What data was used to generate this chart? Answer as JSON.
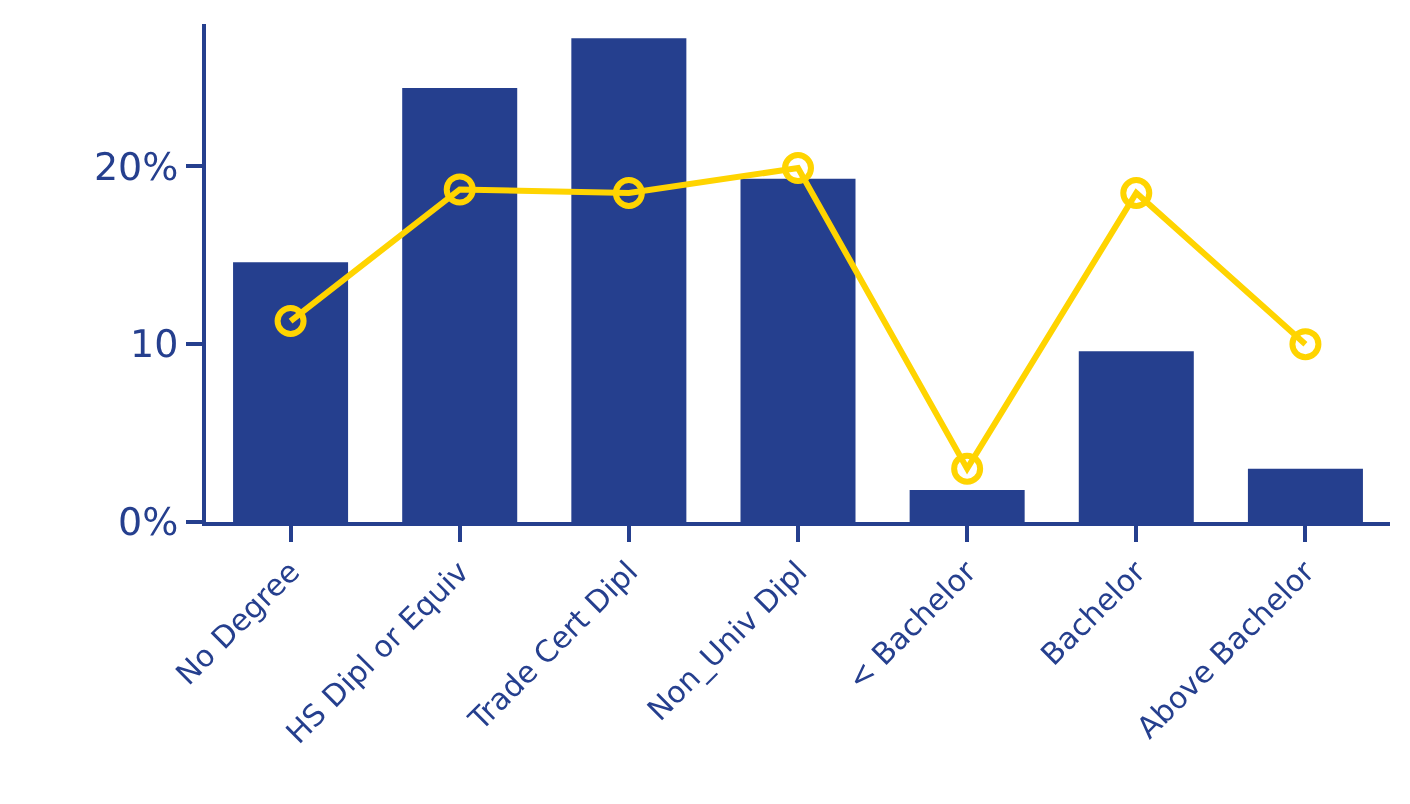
{
  "chart_data": {
    "type": "bar",
    "categories": [
      "No Degree",
      "HS Dipl or Equiv",
      "Trade Cert Dipl",
      "Non_Univ Dipl",
      "< Bachelor",
      "Bachelor",
      "Above Bachelor"
    ],
    "series": [
      {
        "color": "#253f8e",
        "values": [
          14.6,
          24.4,
          27.2,
          19.3,
          1.8,
          9.6,
          3.0
        ]
      },
      {
        "type": "line",
        "color": "#ffd400",
        "values": [
          11.3,
          18.7,
          18.5,
          19.9,
          3.0,
          18.5,
          10.0
        ],
        "marker": "circle"
      }
    ],
    "ylim": [
      0,
      28
    ],
    "yticks": [
      {
        "value": 0,
        "label": "0%"
      },
      10,
      {
        "value": 20,
        "label": "20%"
      }
    ],
    "grid": false
  }
}
